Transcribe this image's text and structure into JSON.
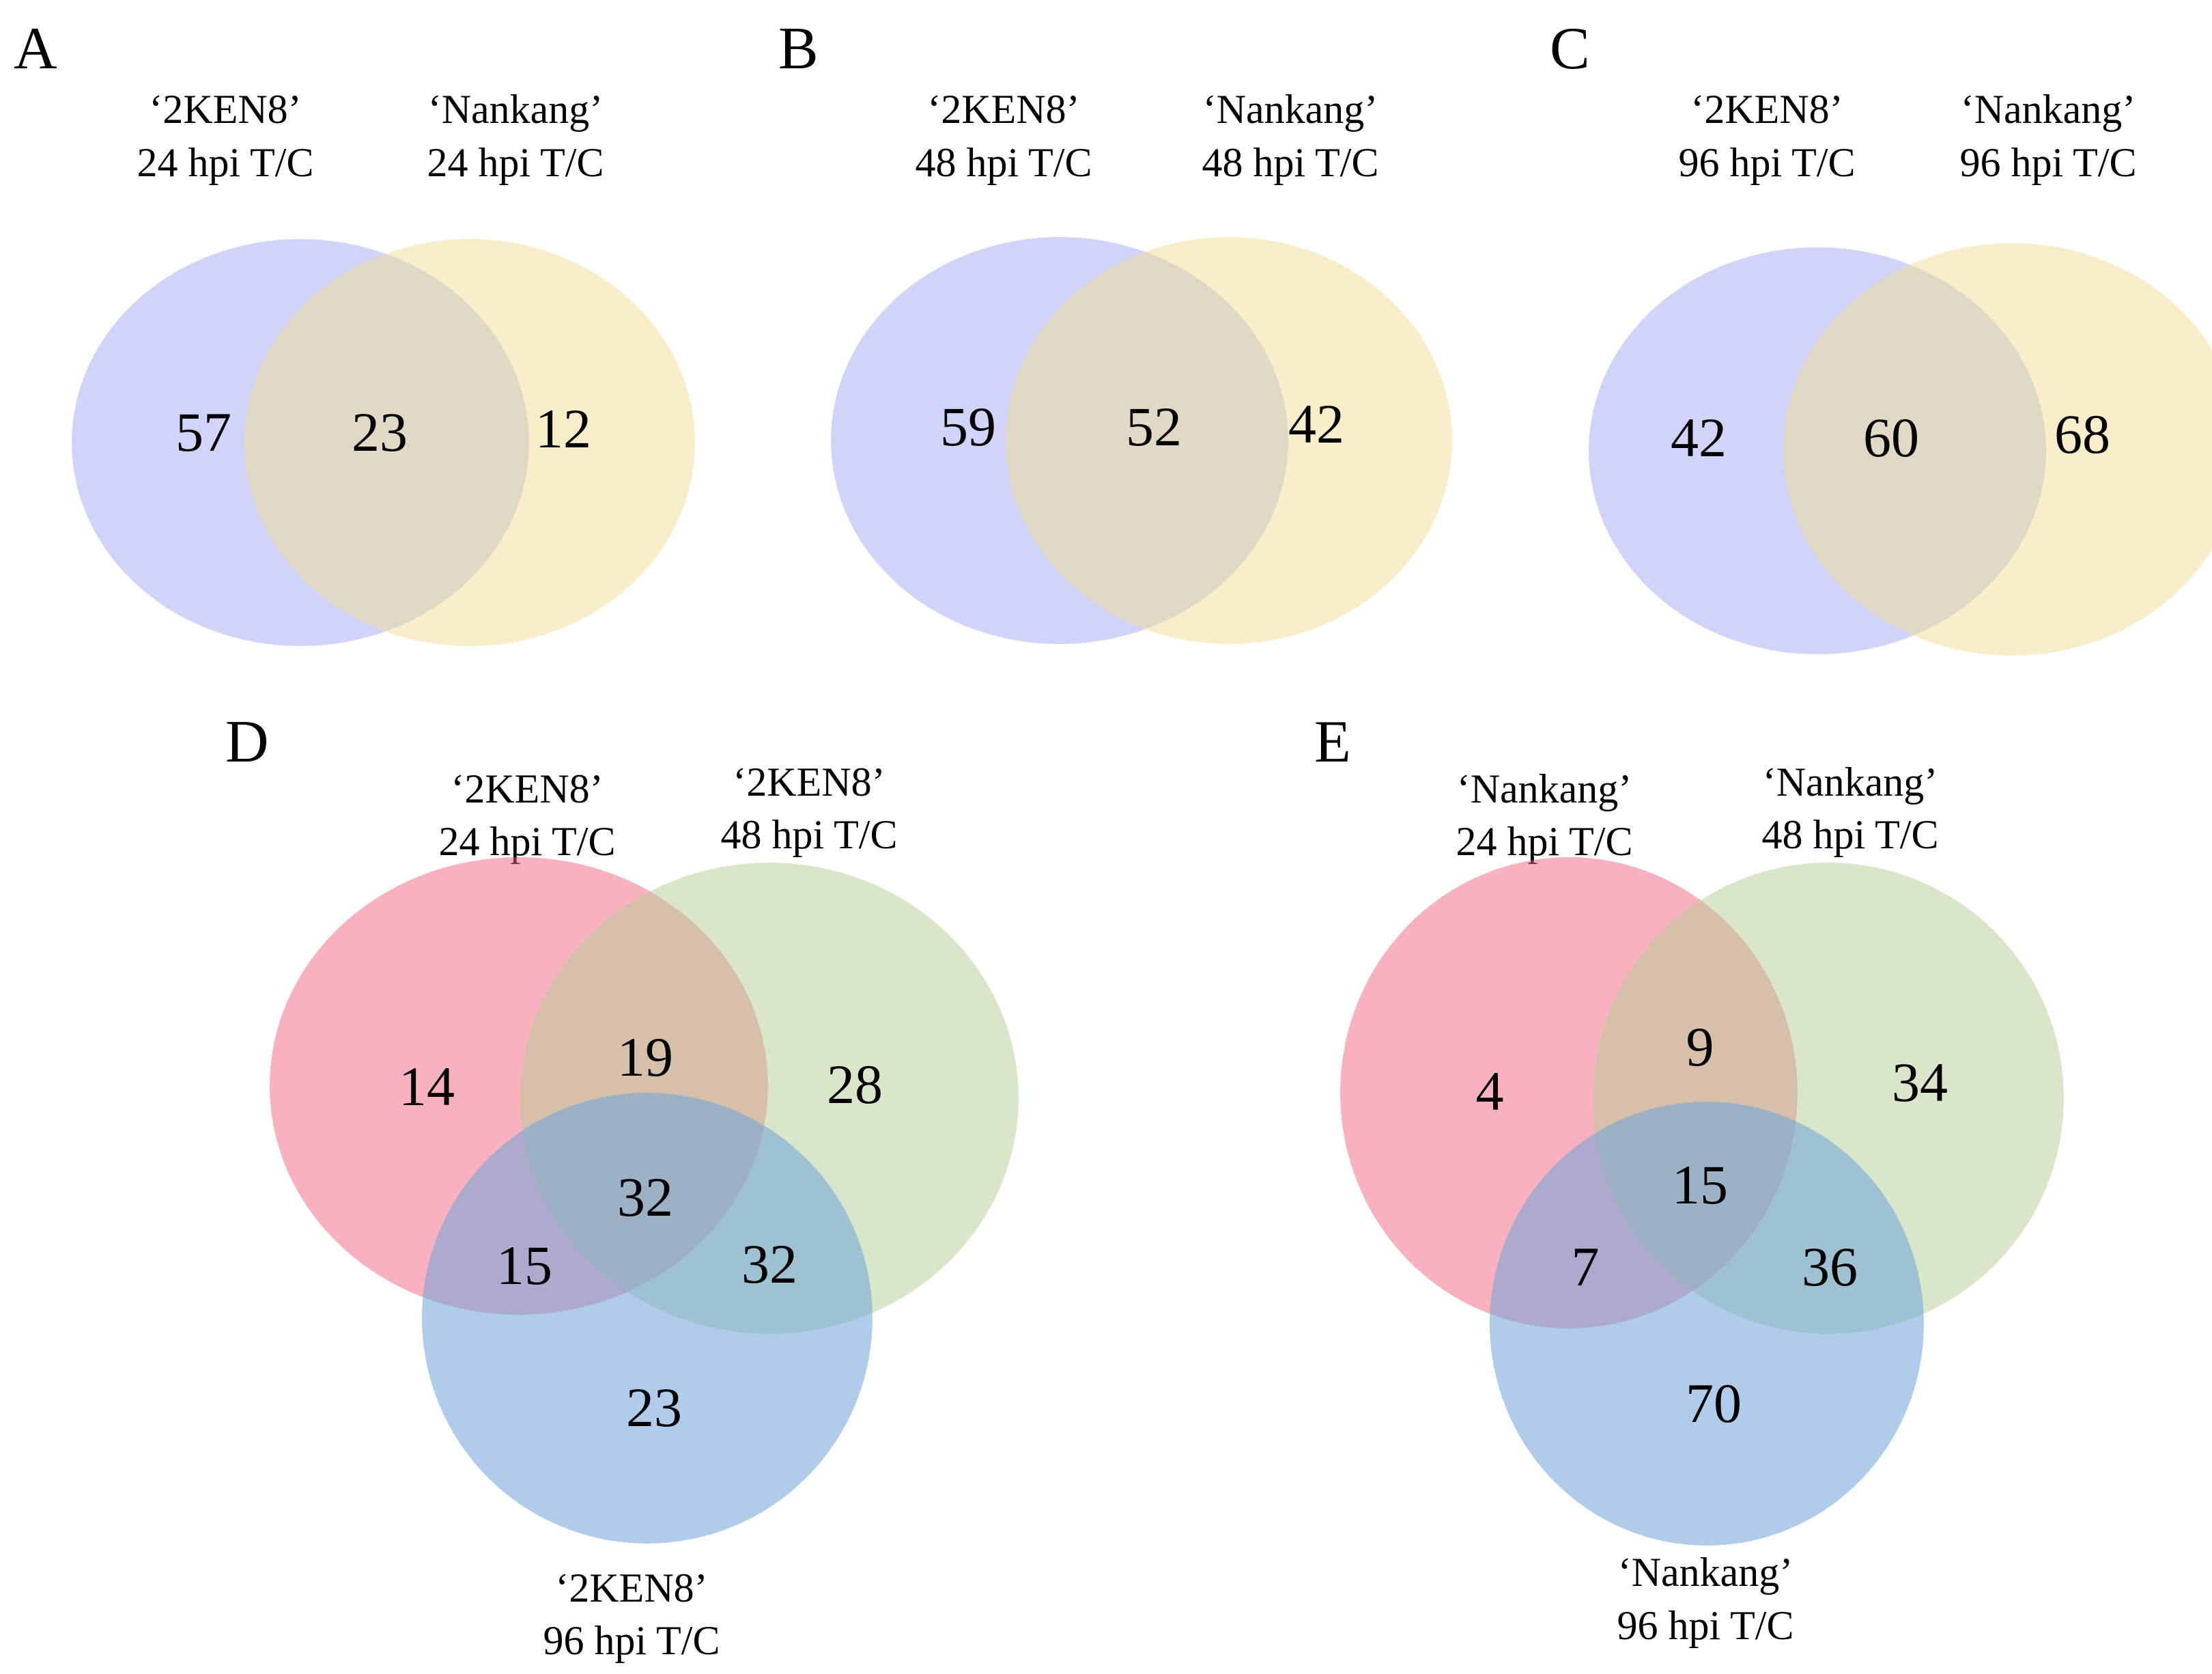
{
  "figure": {
    "colors": {
      "blue": "#7c84ee",
      "yellow": "#f2de94",
      "pink": "#f2657f",
      "green": "#b3cd94",
      "sky": "#6ea4d8"
    },
    "panels": [
      {
        "letter": "A",
        "sets": [
          {
            "line1": "‘2KEN8’",
            "line2": "24 hpi T/C"
          },
          {
            "line1": "‘Nankang’",
            "line2": "24 hpi T/C"
          }
        ],
        "counts": {
          "left_only": "57",
          "both": "23",
          "right_only": "12"
        }
      },
      {
        "letter": "B",
        "sets": [
          {
            "line1": "‘2KEN8’",
            "line2": "48 hpi T/C"
          },
          {
            "line1": "‘Nankang’",
            "line2": "48 hpi T/C"
          }
        ],
        "counts": {
          "left_only": "59",
          "both": "52",
          "right_only": "42"
        }
      },
      {
        "letter": "C",
        "sets": [
          {
            "line1": "‘2KEN8’",
            "line2": "96 hpi T/C"
          },
          {
            "line1": "‘Nankang’",
            "line2": "96 hpi T/C"
          }
        ],
        "counts": {
          "left_only": "42",
          "both": "60",
          "right_only": "68"
        }
      },
      {
        "letter": "D",
        "sets": [
          {
            "line1": "‘2KEN8’",
            "line2": "24 hpi T/C"
          },
          {
            "line1": "‘2KEN8’",
            "line2": "48 hpi T/C"
          },
          {
            "line1": "‘2KEN8’",
            "line2": "96 hpi T/C"
          }
        ],
        "counts": {
          "a_only": "14",
          "ab": "19",
          "b_only": "28",
          "abc": "32",
          "ac": "15",
          "bc": "32",
          "c_only": "23"
        }
      },
      {
        "letter": "E",
        "sets": [
          {
            "line1": "‘Nankang’",
            "line2": "24 hpi T/C"
          },
          {
            "line1": "‘Nankang’",
            "line2": "48 hpi T/C"
          },
          {
            "line1": "‘Nankang’",
            "line2": "96 hpi T/C"
          }
        ],
        "counts": {
          "a_only": "4",
          "ab": "9",
          "b_only": "34",
          "abc": "15",
          "ac": "7",
          "bc": "36",
          "c_only": "70"
        }
      }
    ]
  }
}
